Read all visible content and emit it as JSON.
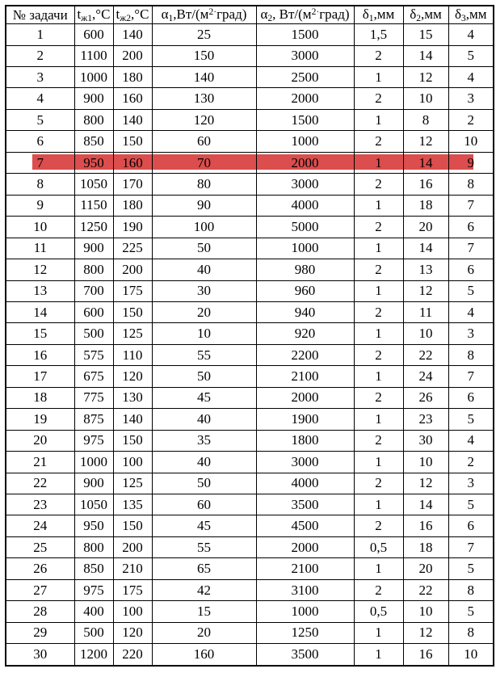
{
  "table": {
    "headers": [
      {
        "text": "№ задачи"
      },
      {
        "base": "t",
        "sub": "ж1",
        "rest": ",°С"
      },
      {
        "base": "t",
        "sub": "ж2",
        "rest": ",°С"
      },
      {
        "base": "α",
        "sub": "1",
        "mid": ",Вт/(м",
        "sup": "2·",
        "rest": "град)"
      },
      {
        "base": "α",
        "sub": "2",
        "mid": ", Вт/(м",
        "sup": "2·",
        "rest": "град)"
      },
      {
        "base": "δ",
        "sub": "1",
        "rest": ",мм"
      },
      {
        "base": "δ",
        "sub": "2",
        "rest": ",мм"
      },
      {
        "base": "δ",
        "sub": "3",
        "rest": ",мм"
      }
    ],
    "rows": [
      [
        "1",
        "600",
        "140",
        "25",
        "1500",
        "1,5",
        "15",
        "4"
      ],
      [
        "2",
        "1100",
        "200",
        "150",
        "3000",
        "2",
        "14",
        "5"
      ],
      [
        "3",
        "1000",
        "180",
        "140",
        "2500",
        "1",
        "12",
        "4"
      ],
      [
        "4",
        "900",
        "160",
        "130",
        "2000",
        "2",
        "10",
        "3"
      ],
      [
        "5",
        "800",
        "140",
        "120",
        "1500",
        "1",
        "8",
        "2"
      ],
      [
        "6",
        "850",
        "150",
        "60",
        "1000",
        "2",
        "12",
        "10"
      ],
      [
        "7",
        "950",
        "160",
        "70",
        "2000",
        "1",
        "14",
        "9"
      ],
      [
        "8",
        "1050",
        "170",
        "80",
        "3000",
        "2",
        "16",
        "8"
      ],
      [
        "9",
        "1150",
        "180",
        "90",
        "4000",
        "1",
        "18",
        "7"
      ],
      [
        "10",
        "1250",
        "190",
        "100",
        "5000",
        "2",
        "20",
        "6"
      ],
      [
        "11",
        "900",
        "225",
        "50",
        "1000",
        "1",
        "14",
        "7"
      ],
      [
        "12",
        "800",
        "200",
        "40",
        "980",
        "2",
        "13",
        "6"
      ],
      [
        "13",
        "700",
        "175",
        "30",
        "960",
        "1",
        "12",
        "5"
      ],
      [
        "14",
        "600",
        "150",
        "20",
        "940",
        "2",
        "11",
        "4"
      ],
      [
        "15",
        "500",
        "125",
        "10",
        "920",
        "1",
        "10",
        "3"
      ],
      [
        "16",
        "575",
        "110",
        "55",
        "2200",
        "2",
        "22",
        "8"
      ],
      [
        "17",
        "675",
        "120",
        "50",
        "2100",
        "1",
        "24",
        "7"
      ],
      [
        "18",
        "775",
        "130",
        "45",
        "2000",
        "2",
        "26",
        "6"
      ],
      [
        "19",
        "875",
        "140",
        "40",
        "1900",
        "1",
        "23",
        "5"
      ],
      [
        "20",
        "975",
        "150",
        "35",
        "1800",
        "2",
        "30",
        "4"
      ],
      [
        "21",
        "1000",
        "100",
        "40",
        "3000",
        "1",
        "10",
        "2"
      ],
      [
        "22",
        "900",
        "125",
        "50",
        "4000",
        "2",
        "12",
        "3"
      ],
      [
        "23",
        "1050",
        "135",
        "60",
        "3500",
        "1",
        "14",
        "5"
      ],
      [
        "24",
        "950",
        "150",
        "45",
        "4500",
        "2",
        "16",
        "6"
      ],
      [
        "25",
        "800",
        "200",
        "55",
        "2000",
        "0,5",
        "18",
        "7"
      ],
      [
        "26",
        "850",
        "210",
        "65",
        "2100",
        "1",
        "20",
        "5"
      ],
      [
        "27",
        "975",
        "175",
        "42",
        "3100",
        "2",
        "22",
        "8"
      ],
      [
        "28",
        "400",
        "100",
        "15",
        "1000",
        "0,5",
        "10",
        "5"
      ],
      [
        "29",
        "500",
        "120",
        "20",
        "1250",
        "1",
        "12",
        "8"
      ],
      [
        "30",
        "1200",
        "220",
        "160",
        "3500",
        "1",
        "16",
        "10"
      ]
    ],
    "highlight": {
      "row_number": "7",
      "color": "#dc4d4d"
    }
  }
}
